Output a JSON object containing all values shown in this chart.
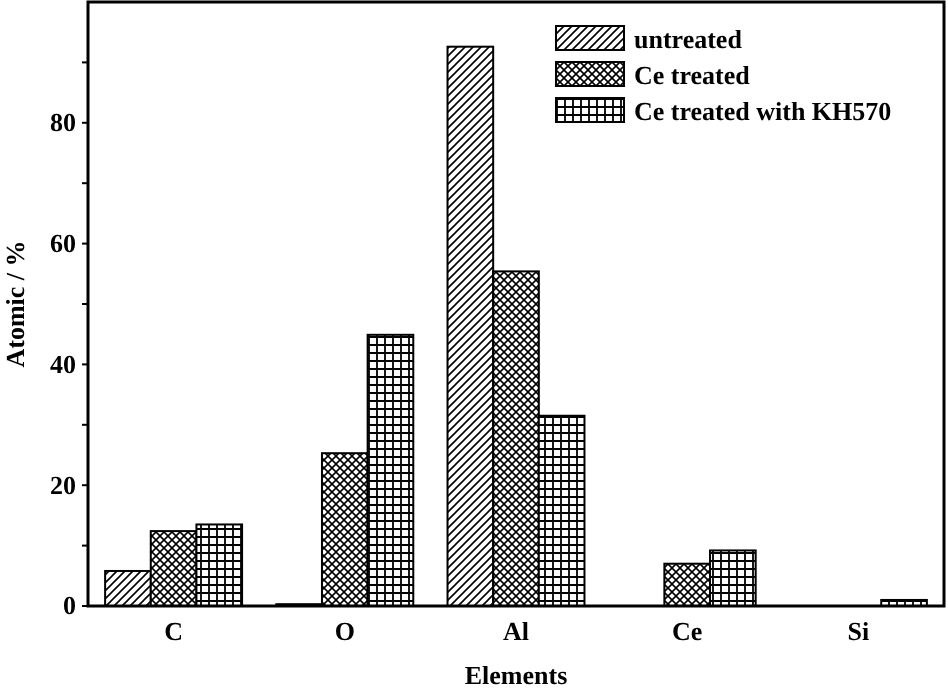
{
  "chart_data": {
    "type": "bar",
    "xlabel": "Elements",
    "ylabel": "Atomic / %",
    "categories": [
      "C",
      "O",
      "Al",
      "Ce",
      "Si"
    ],
    "series": [
      {
        "name": "untreated",
        "color": "#000000",
        "values": [
          5.8,
          0.3,
          92.6,
          0,
          0
        ]
      },
      {
        "name": "Ce treated",
        "color": "#000000",
        "values": [
          12.4,
          25.3,
          55.4,
          7.0,
          0
        ]
      },
      {
        "name": "Ce treated with KH570",
        "color": "#000000",
        "values": [
          13.5,
          44.9,
          31.5,
          9.2,
          1.0
        ]
      }
    ],
    "ylim": [
      0,
      100
    ],
    "yticks": [
      0,
      {
        "value": 10,
        "label": null
      },
      20,
      {
        "value": 30,
        "label": null
      },
      40,
      {
        "value": 50,
        "label": null
      },
      60,
      {
        "value": 70,
        "label": null
      },
      80,
      {
        "value": 90,
        "label": null
      }
    ],
    "grid": false,
    "legend": "top right"
  }
}
